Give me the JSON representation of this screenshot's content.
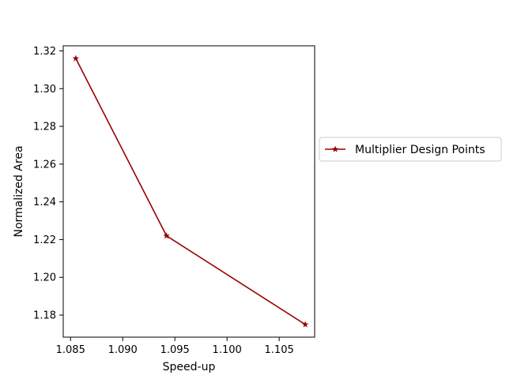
{
  "chart_data": {
    "type": "line",
    "xlabel": "Speed-up",
    "ylabel": "Normalized Area",
    "xlim": [
      1.0843,
      1.1084
    ],
    "ylim": [
      1.1683,
      1.3227
    ],
    "xticks": [
      1.085,
      1.09,
      1.095,
      1.1,
      1.105
    ],
    "xtick_labels": [
      "1.085",
      "1.090",
      "1.095",
      "1.100",
      "1.105"
    ],
    "yticks": [
      1.18,
      1.2,
      1.22,
      1.24,
      1.26,
      1.28,
      1.3,
      1.32
    ],
    "ytick_labels": [
      "1.18",
      "1.20",
      "1.22",
      "1.24",
      "1.26",
      "1.28",
      "1.30",
      "1.32"
    ],
    "grid": false,
    "legend_placement": "right, outside plot",
    "series": [
      {
        "name": "Multiplier Design Points",
        "color": "#990000",
        "marker": "star",
        "x": [
          1.0855,
          1.0942,
          1.1075
        ],
        "y": [
          1.316,
          1.222,
          1.175
        ]
      }
    ]
  }
}
